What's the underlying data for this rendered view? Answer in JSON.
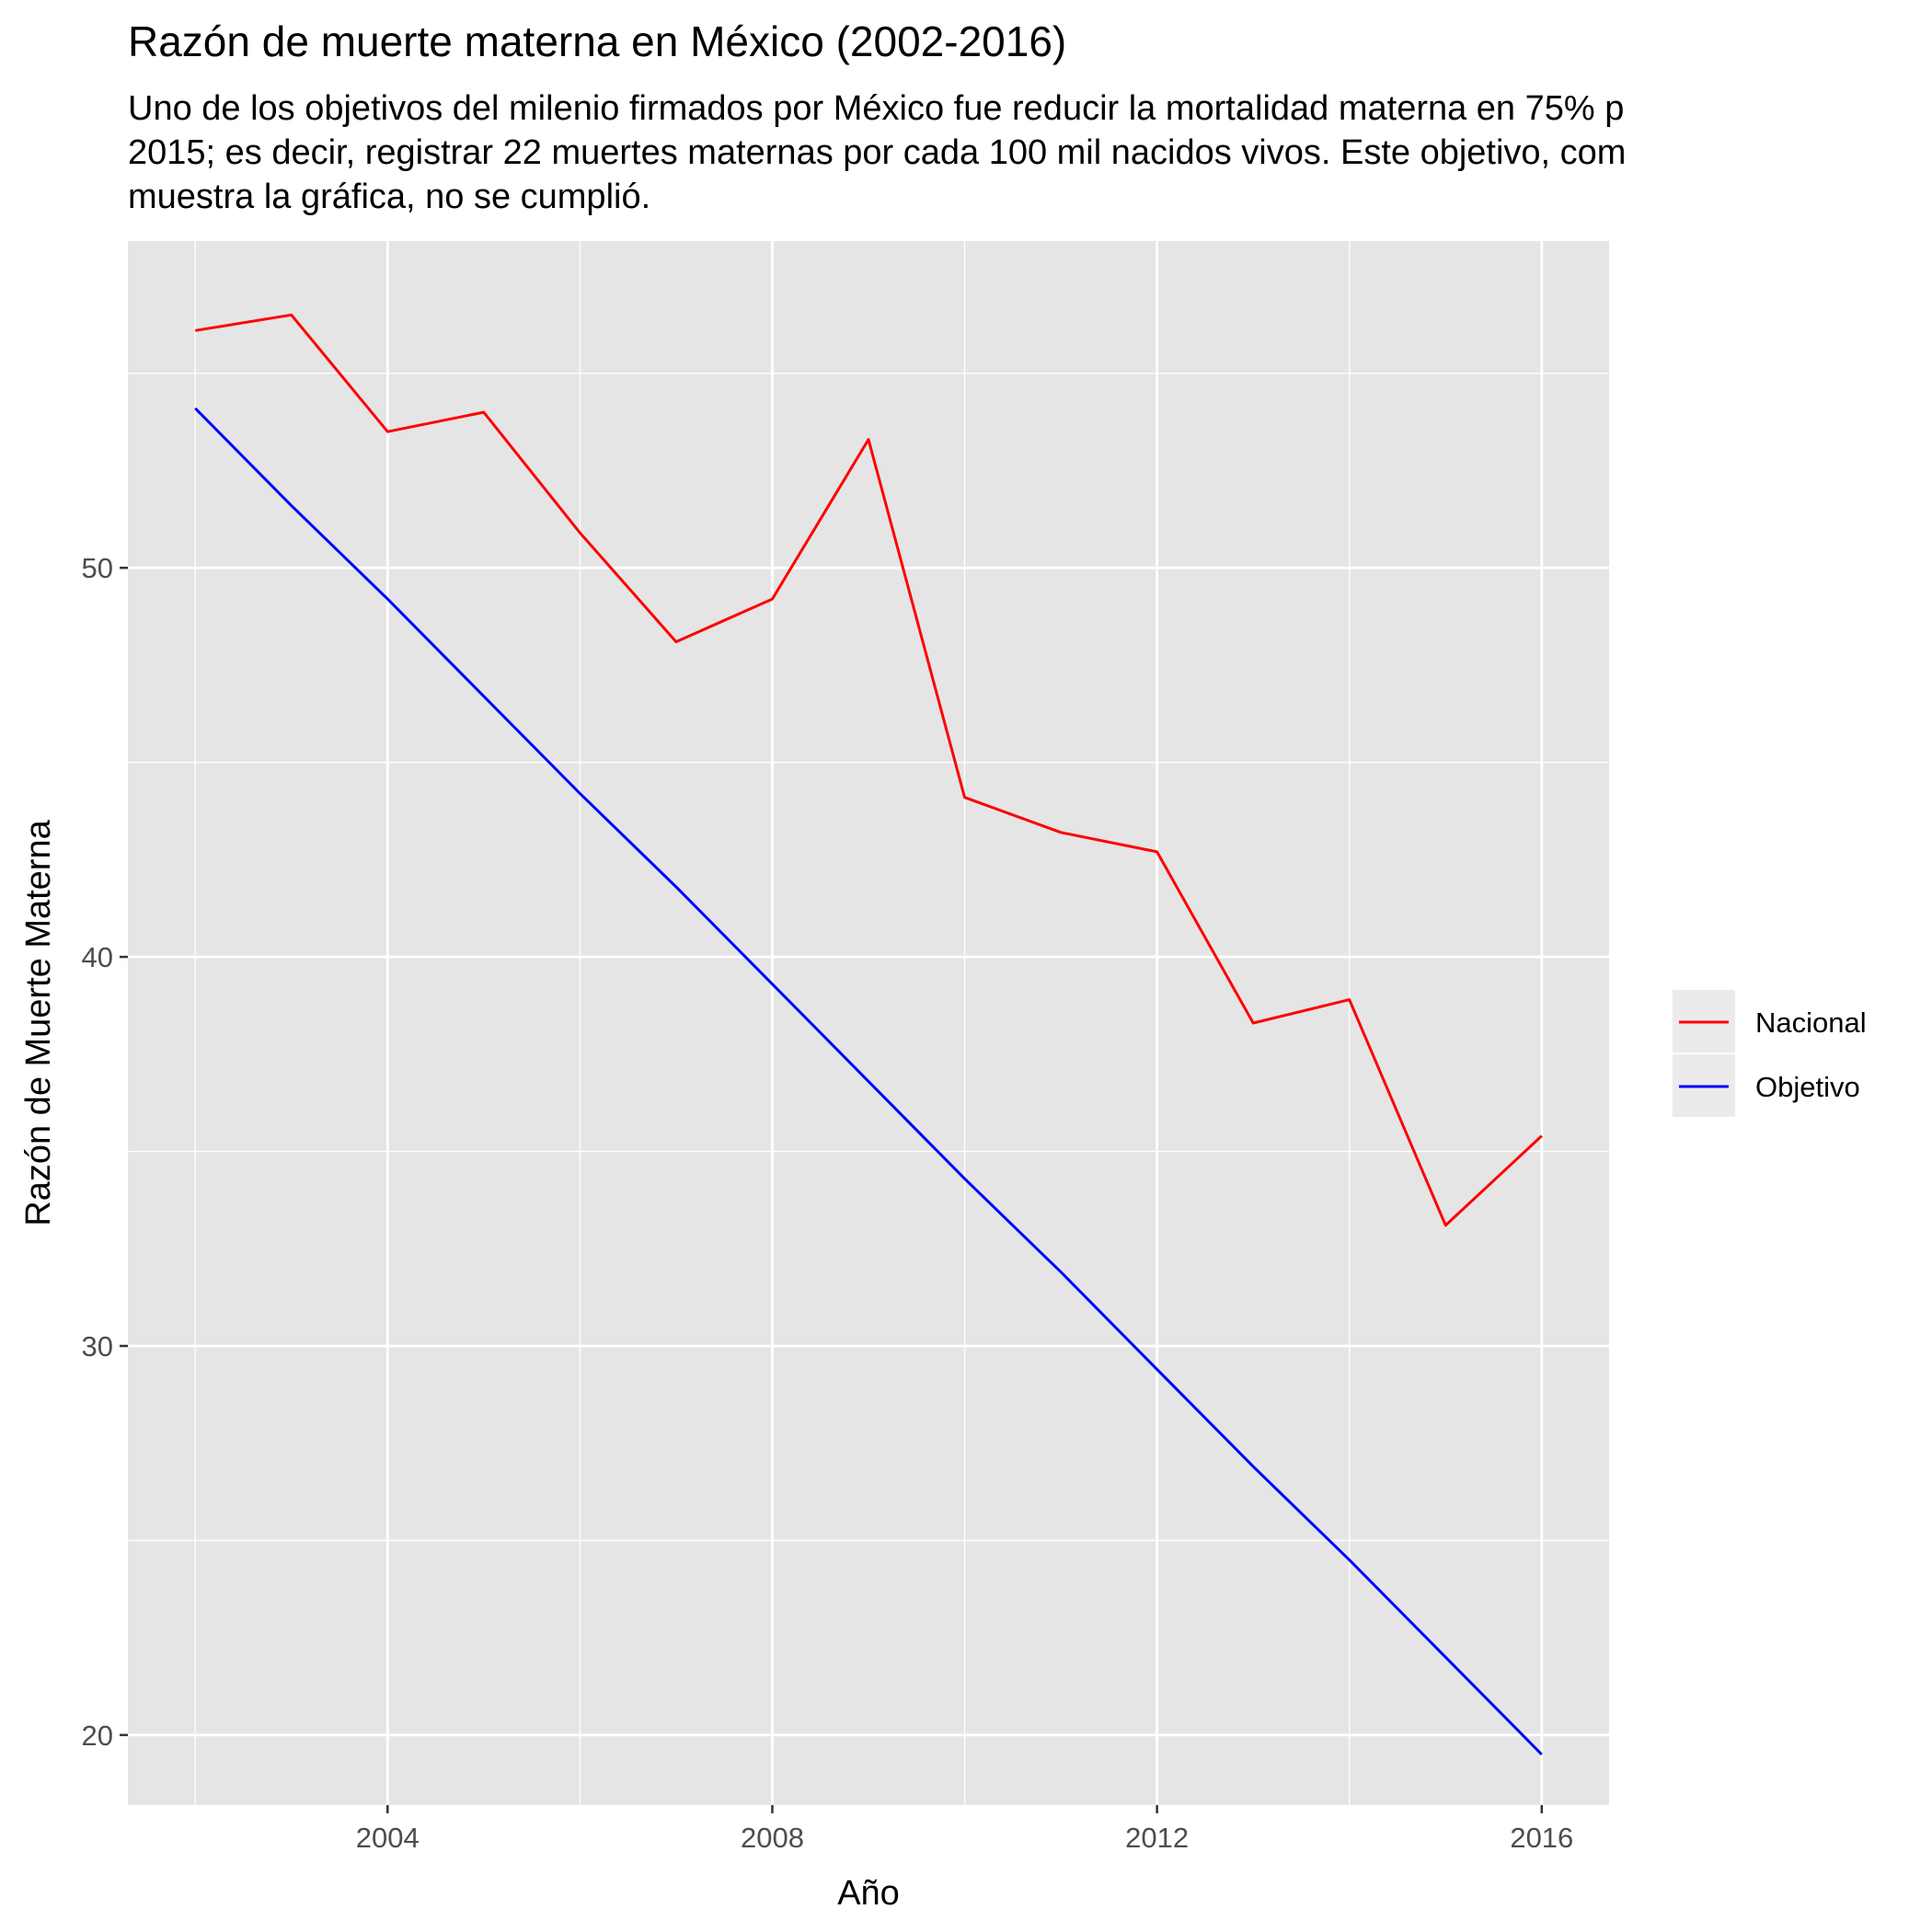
{
  "chart_data": {
    "type": "line",
    "title": "Razón de muerte materna en México (2002-2016)",
    "subtitle_lines": [
      "Uno de los objetivos del milenio firmados por México fue reducir la mortalidad materna en 75% p",
      "2015; es decir, registrar 22 muertes maternas por cada 100 mil nacidos vivos. Este objetivo, com",
      "muestra la gráfica, no se cumplió."
    ],
    "xlabel": "Año",
    "ylabel": "Razón de Muerte Materna",
    "x_ticks": [
      2004,
      2008,
      2012,
      2016
    ],
    "y_ticks": [
      20,
      30,
      40,
      50
    ],
    "xlim": [
      2001.3,
      2016.7
    ],
    "ylim": [
      18.2,
      58.4
    ],
    "grid": true,
    "legend_position": "right",
    "background": "#e5e5e5",
    "x": [
      2002,
      2003,
      2004,
      2005,
      2006,
      2007,
      2008,
      2009,
      2010,
      2011,
      2012,
      2013,
      2014,
      2015,
      2016
    ],
    "series": [
      {
        "name": "Nacional",
        "color": "#ff0000",
        "values": [
          56.1,
          56.5,
          53.5,
          54.0,
          50.9,
          48.1,
          49.2,
          53.3,
          44.1,
          43.2,
          42.7,
          38.3,
          38.9,
          33.1,
          35.4
        ]
      },
      {
        "name": "Objetivo",
        "color": "#0000ff",
        "values": [
          54.1,
          51.6,
          49.2,
          46.7,
          44.2,
          41.8,
          39.3,
          36.8,
          34.3,
          31.9,
          29.4,
          26.9,
          24.5,
          22.0,
          19.5
        ]
      }
    ]
  }
}
